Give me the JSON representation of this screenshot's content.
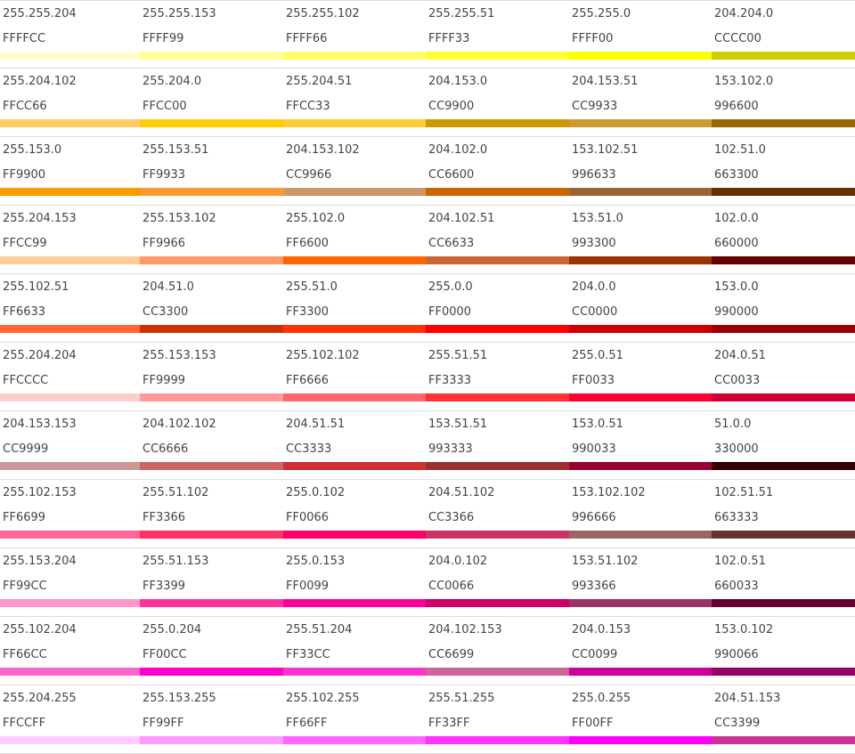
{
  "rows": [
    [
      {
        "rgb": "255.255.204",
        "hex": "FFFFCC",
        "color": "#FFFFCC"
      },
      {
        "rgb": "255.255.153",
        "hex": "FFFF99",
        "color": "#FFFF99"
      },
      {
        "rgb": "255.255.102",
        "hex": "FFFF66",
        "color": "#FFFF66"
      },
      {
        "rgb": "255.255.51",
        "hex": "FFFF33",
        "color": "#FFFF33"
      },
      {
        "rgb": "255.255.0",
        "hex": "FFFF00",
        "color": "#FFFF00"
      },
      {
        "rgb": "204.204.0",
        "hex": "CCCC00",
        "color": "#CCCC00"
      }
    ],
    [
      {
        "rgb": "255.204.102",
        "hex": "FFCC66",
        "color": "#FFCC66"
      },
      {
        "rgb": "255.204.0",
        "hex": "FFCC00",
        "color": "#FFCC00"
      },
      {
        "rgb": "255.204.51",
        "hex": "FFCC33",
        "color": "#FFCC33"
      },
      {
        "rgb": "204.153.0",
        "hex": "CC9900",
        "color": "#CC9900"
      },
      {
        "rgb": "204.153.51",
        "hex": "CC9933",
        "color": "#CC9933"
      },
      {
        "rgb": "153.102.0",
        "hex": "996600",
        "color": "#996600"
      }
    ],
    [
      {
        "rgb": "255.153.0",
        "hex": "FF9900",
        "color": "#FF9900"
      },
      {
        "rgb": "255.153.51",
        "hex": "FF9933",
        "color": "#FF9933"
      },
      {
        "rgb": "204.153.102",
        "hex": "CC9966",
        "color": "#CC9966"
      },
      {
        "rgb": "204.102.0",
        "hex": "CC6600",
        "color": "#CC6600"
      },
      {
        "rgb": "153.102.51",
        "hex": "996633",
        "color": "#996633"
      },
      {
        "rgb": "102.51.0",
        "hex": "663300",
        "color": "#663300"
      }
    ],
    [
      {
        "rgb": "255.204.153",
        "hex": "FFCC99",
        "color": "#FFCC99"
      },
      {
        "rgb": "255.153.102",
        "hex": "FF9966",
        "color": "#FF9966"
      },
      {
        "rgb": "255.102.0",
        "hex": "FF6600",
        "color": "#FF6600"
      },
      {
        "rgb": "204.102.51",
        "hex": "CC6633",
        "color": "#CC6633"
      },
      {
        "rgb": "153.51.0",
        "hex": "993300",
        "color": "#993300"
      },
      {
        "rgb": "102.0.0",
        "hex": "660000",
        "color": "#660000"
      }
    ],
    [
      {
        "rgb": "255.102.51",
        "hex": "FF6633",
        "color": "#FF6633"
      },
      {
        "rgb": "204.51.0",
        "hex": "CC3300",
        "color": "#CC3300"
      },
      {
        "rgb": "255.51.0",
        "hex": "FF3300",
        "color": "#FF3300"
      },
      {
        "rgb": "255.0.0",
        "hex": "FF0000",
        "color": "#FF0000"
      },
      {
        "rgb": "204.0.0",
        "hex": "CC0000",
        "color": "#CC0000"
      },
      {
        "rgb": "153.0.0",
        "hex": "990000",
        "color": "#990000"
      }
    ],
    [
      {
        "rgb": "255.204.204",
        "hex": "FFCCCC",
        "color": "#FFCCCC"
      },
      {
        "rgb": "255.153.153",
        "hex": "FF9999",
        "color": "#FF9999"
      },
      {
        "rgb": "255.102.102",
        "hex": "FF6666",
        "color": "#FF6666"
      },
      {
        "rgb": "255.51.51",
        "hex": "FF3333",
        "color": "#FF3333"
      },
      {
        "rgb": "255.0.51",
        "hex": "FF0033",
        "color": "#FF0033"
      },
      {
        "rgb": "204.0.51",
        "hex": "CC0033",
        "color": "#CC0033"
      }
    ],
    [
      {
        "rgb": "204.153.153",
        "hex": "CC9999",
        "color": "#CC9999"
      },
      {
        "rgb": "204.102.102",
        "hex": "CC6666",
        "color": "#CC6666"
      },
      {
        "rgb": "204.51.51",
        "hex": "CC3333",
        "color": "#CC3333"
      },
      {
        "rgb": "153.51.51",
        "hex": "993333",
        "color": "#993333"
      },
      {
        "rgb": "153.0.51",
        "hex": "990033",
        "color": "#990033"
      },
      {
        "rgb": "51.0.0",
        "hex": "330000",
        "color": "#330000"
      }
    ],
    [
      {
        "rgb": "255.102.153",
        "hex": "FF6699",
        "color": "#FF6699"
      },
      {
        "rgb": "255.51.102",
        "hex": "FF3366",
        "color": "#FF3366"
      },
      {
        "rgb": "255.0.102",
        "hex": "FF0066",
        "color": "#FF0066"
      },
      {
        "rgb": "204.51.102",
        "hex": "CC3366",
        "color": "#CC3366"
      },
      {
        "rgb": "153.102.102",
        "hex": "996666",
        "color": "#996666"
      },
      {
        "rgb": "102.51.51",
        "hex": "663333",
        "color": "#663333"
      }
    ],
    [
      {
        "rgb": "255.153.204",
        "hex": "FF99CC",
        "color": "#FF99CC"
      },
      {
        "rgb": "255.51.153",
        "hex": "FF3399",
        "color": "#FF3399"
      },
      {
        "rgb": "255.0.153",
        "hex": "FF0099",
        "color": "#FF0099"
      },
      {
        "rgb": "204.0.102",
        "hex": "CC0066",
        "color": "#CC0066"
      },
      {
        "rgb": "153.51.102",
        "hex": "993366",
        "color": "#993366"
      },
      {
        "rgb": "102.0.51",
        "hex": "660033",
        "color": "#660033"
      }
    ],
    [
      {
        "rgb": "255.102.204",
        "hex": "FF66CC",
        "color": "#FF66CC"
      },
      {
        "rgb": "255.0.204",
        "hex": "FF00CC",
        "color": "#FF00CC"
      },
      {
        "rgb": "255.51.204",
        "hex": "FF33CC",
        "color": "#FF33CC"
      },
      {
        "rgb": "204.102.153",
        "hex": "CC6699",
        "color": "#CC6699"
      },
      {
        "rgb": "204.0.153",
        "hex": "CC0099",
        "color": "#CC0099"
      },
      {
        "rgb": "153.0.102",
        "hex": "990066",
        "color": "#990066"
      }
    ],
    [
      {
        "rgb": "255.204.255",
        "hex": "FFCCFF",
        "color": "#FFCCFF"
      },
      {
        "rgb": "255.153.255",
        "hex": "FF99FF",
        "color": "#FF99FF"
      },
      {
        "rgb": "255.102.255",
        "hex": "FF66FF",
        "color": "#FF66FF"
      },
      {
        "rgb": "255.51.255",
        "hex": "FF33FF",
        "color": "#FF33FF"
      },
      {
        "rgb": "255.0.255",
        "hex": "FF00FF",
        "color": "#FF00FF"
      },
      {
        "rgb": "204.51.153",
        "hex": "CC3399",
        "color": "#CC3399"
      }
    ]
  ]
}
